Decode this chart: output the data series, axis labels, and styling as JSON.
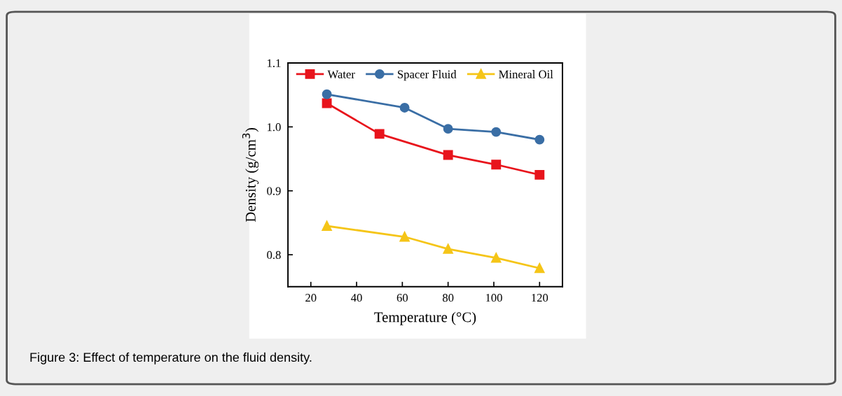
{
  "chart_data": {
    "type": "line",
    "xlabel": "Temperature (°C)",
    "ylabel": "Density (g/cm$^{3}$)",
    "annotations": [
      "Figure 3: Effect of temperature on the fluid density."
    ],
    "series": [
      {
        "name": "Water",
        "color": "#e8141c",
        "marker": "square",
        "x": [
          27,
          50,
          80,
          101,
          120
        ],
        "values": [
          1.037,
          0.989,
          0.956,
          0.941,
          0.925
        ]
      },
      {
        "name": "Spacer Fluid",
        "color": "#3a6ea5",
        "marker": "circle",
        "x": [
          27,
          61,
          80,
          101,
          120
        ],
        "values": [
          1.051,
          1.03,
          0.997,
          0.992,
          0.98
        ]
      },
      {
        "name": "Mineral Oil",
        "color": "#f5c518",
        "marker": "triangle",
        "x": [
          27,
          61,
          80,
          101,
          120
        ],
        "values": [
          0.845,
          0.828,
          0.809,
          0.795,
          0.779
        ]
      }
    ],
    "xlim": [
      10,
      130
    ],
    "xticks": [
      20,
      40,
      60,
      80,
      100,
      120
    ],
    "ylim": [
      0.75,
      1.1
    ],
    "yticks": [
      0.8,
      0.9,
      {
        "value": 1,
        "label": "1.0"
      },
      1.1
    ],
    "grid": false,
    "legend": "top",
    "line_style": "solid"
  }
}
